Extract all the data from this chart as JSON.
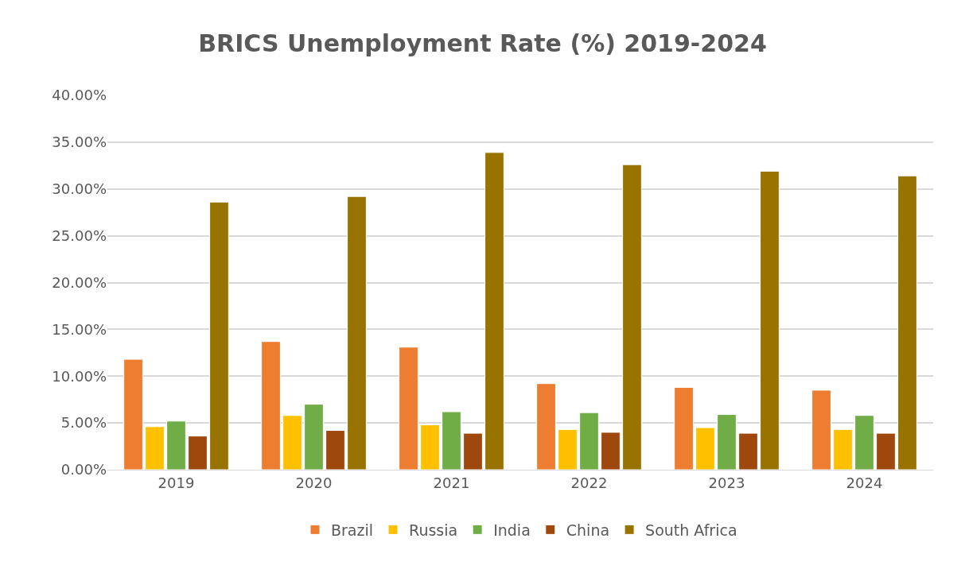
{
  "chart_data": {
    "type": "bar",
    "title": "BRICS Unemployment Rate (%) 2019-2024",
    "categories": [
      "2019",
      "2020",
      "2021",
      "2022",
      "2023",
      "2024"
    ],
    "series": [
      {
        "name": "Brazil",
        "color": "#ed7d31",
        "values": [
          11.8,
          13.7,
          13.1,
          9.2,
          8.8,
          8.5
        ]
      },
      {
        "name": "Russia",
        "color": "#ffc000",
        "values": [
          4.6,
          5.8,
          4.8,
          4.3,
          4.5,
          4.3
        ]
      },
      {
        "name": "India",
        "color": "#70ad47",
        "values": [
          5.2,
          7.0,
          6.2,
          6.1,
          5.9,
          5.8
        ]
      },
      {
        "name": "China",
        "color": "#9e480e",
        "values": [
          3.6,
          4.2,
          3.9,
          4.0,
          3.9,
          3.9
        ]
      },
      {
        "name": "South Africa",
        "color": "#997300",
        "values": [
          28.6,
          29.2,
          33.9,
          32.6,
          31.9,
          31.4
        ]
      }
    ],
    "ylim": [
      0,
      40
    ],
    "yticks": [
      {
        "value": 0,
        "label": "0.00%"
      },
      {
        "value": 5,
        "label": "5.00%"
      },
      {
        "value": 10,
        "label": "10.00%"
      },
      {
        "value": 15,
        "label": "15.00%"
      },
      {
        "value": 20,
        "label": "20.00%"
      },
      {
        "value": 25,
        "label": "25.00%"
      },
      {
        "value": 30,
        "label": "30.00%"
      },
      {
        "value": 35,
        "label": "35.00%"
      },
      {
        "value": 40,
        "label": "40.00%"
      }
    ],
    "grid": "y",
    "legend": "bottom"
  }
}
